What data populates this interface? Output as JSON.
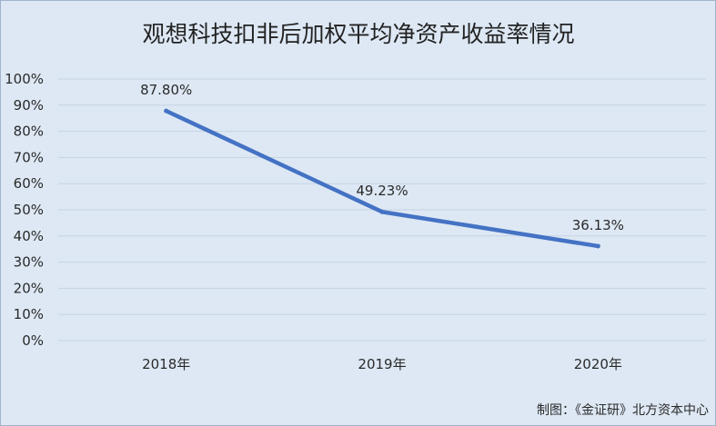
{
  "chart_data": {
    "type": "line",
    "title": "观想科技扣非后加权平均净资产收益率情况",
    "xlabel": "",
    "ylabel": "",
    "categories": [
      "2018年",
      "2019年",
      "2020年"
    ],
    "series": [
      {
        "values": [
          87.8,
          49.23,
          36.13
        ],
        "data_labels": [
          "87.80%",
          "49.23%",
          "36.13%"
        ],
        "color": "#4472c4"
      }
    ],
    "ylim": [
      0,
      100
    ],
    "y_ticks": [
      "0%",
      "10%",
      "20%",
      "30%",
      "40%",
      "50%",
      "60%",
      "70%",
      "80%",
      "90%",
      "100%"
    ],
    "grid": true,
    "legend": "none"
  },
  "credit": "制图：《金证研》北方资本中心",
  "colors": {
    "background": "#dde8f4",
    "grid": "#c5d3e3",
    "line": "#4472c4"
  }
}
